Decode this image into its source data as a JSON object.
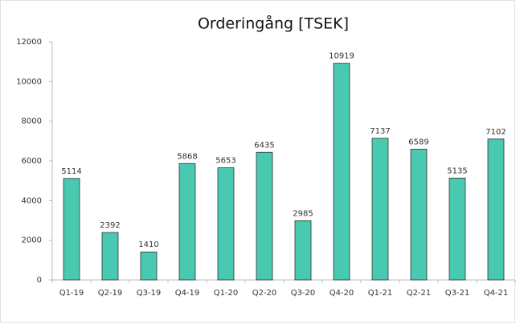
{
  "chart_data": {
    "type": "bar",
    "title": "Orderingång [TSEK]",
    "categories": [
      "Q1-19",
      "Q2-19",
      "Q3-19",
      "Q4-19",
      "Q1-20",
      "Q2-20",
      "Q3-20",
      "Q4-20",
      "Q1-21",
      "Q2-21",
      "Q3-21",
      "Q4-21"
    ],
    "values": [
      5114,
      2392,
      1410,
      5868,
      5653,
      6435,
      2985,
      10919,
      7137,
      6589,
      5135,
      7102
    ],
    "color": "#48c9b0",
    "ylim": [
      0,
      12000
    ],
    "yticks": [
      0,
      2000,
      4000,
      6000,
      8000,
      10000,
      12000
    ],
    "grid": false
  }
}
